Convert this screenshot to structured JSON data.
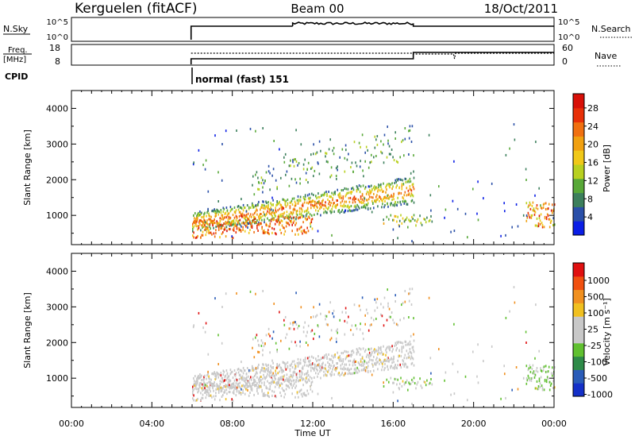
{
  "header": {
    "station": "Kerguelen (fitACF)",
    "beam": "Beam 00",
    "date": "18/Oct/2011"
  },
  "panels": {
    "nsky": {
      "label": "N.Sky",
      "right_label": "N.Search",
      "left_ticks": [
        "10^5",
        "10^0"
      ],
      "right_ticks": [
        "10^5",
        "10^0"
      ]
    },
    "freq": {
      "label_line1": "Freq.",
      "label_line2": "[MHz]",
      "right_label": "Nave",
      "left_ticks": [
        "18",
        "8"
      ],
      "right_ticks": [
        "60",
        "0"
      ]
    },
    "cpid": {
      "label": "CPID",
      "program": "normal (fast) 151"
    }
  },
  "chart_data": [
    {
      "type": "heatmap",
      "name": "power",
      "ylabel": "Slant Range [km]",
      "ylim": [
        180,
        4500
      ],
      "yticks": [
        "1000",
        "2000",
        "3000",
        "4000"
      ],
      "colorbar": {
        "label": "Power [dB]",
        "ticks": [
          "4",
          "8",
          "12",
          "16",
          "20",
          "24",
          "28"
        ],
        "colors": [
          "#0a1ee6",
          "#2a4fa8",
          "#3c7f5c",
          "#58a838",
          "#b8d020",
          "#f0c818",
          "#f0a010",
          "#f07010",
          "#e83008",
          "#d81008"
        ]
      }
    },
    {
      "type": "heatmap",
      "name": "velocity",
      "ylabel": "Slant Range [km]",
      "xlabel": "Time UT",
      "ylim": [
        180,
        4500
      ],
      "yticks": [
        "1000",
        "2000",
        "3000",
        "4000"
      ],
      "xticks": [
        "00:00",
        "04:00",
        "08:00",
        "12:00",
        "16:00",
        "20:00",
        "00:00"
      ],
      "colorbar": {
        "label": "Velocity [m s⁻¹]",
        "ticks": [
          "1000",
          "500",
          "100",
          "25",
          "-25",
          "-100",
          "-500",
          "-1000"
        ],
        "colors": [
          "#1430c8",
          "#2a5cb8",
          "#2e8a48",
          "#60c030",
          "#c8c8c8",
          "#c8c8c8",
          "#f0c020",
          "#f09020",
          "#f05010",
          "#e01010"
        ]
      }
    }
  ],
  "colors": {
    "axis": "#000000",
    "power_ground": "#f0a010",
    "velocity_ionosphere": "#c8c8c8"
  }
}
